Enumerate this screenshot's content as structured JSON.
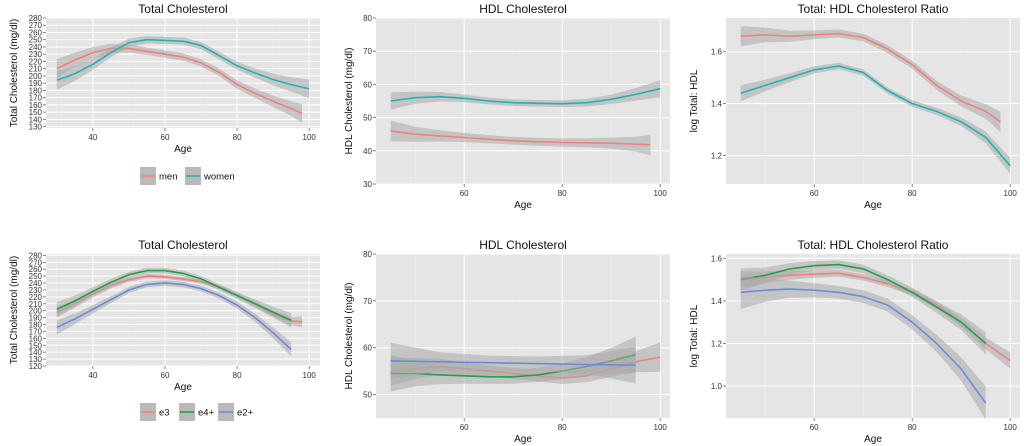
{
  "colors": {
    "panel_bg": "#e5e5e5",
    "grid": "#ffffff",
    "ribbon": "#a9a9a9",
    "men": "#f0827a",
    "women": "#1fb4b4",
    "e3": "#f0827a",
    "e4+": "#23a04a",
    "e2+": "#6b8cdc"
  },
  "rows": [
    {
      "legend": {
        "entries": [
          {
            "label": "men",
            "key": "men"
          },
          {
            "label": "women",
            "key": "women"
          }
        ]
      }
    },
    {
      "legend": {
        "entries": [
          {
            "label": "e3",
            "key": "e3"
          },
          {
            "label": "e4+",
            "key": "e4+"
          },
          {
            "label": "e2+",
            "key": "e2+"
          }
        ]
      }
    }
  ],
  "chart_data": [
    {
      "type": "line",
      "title": "Total Cholesterol",
      "xlabel": "Age",
      "ylabel": "Total Cholesterol (mg/dl)",
      "xlim": [
        27,
        103
      ],
      "ylim": [
        128,
        280
      ],
      "grid": true,
      "legend_position": "bottom",
      "xticks": [
        40,
        60,
        80,
        100
      ],
      "yticks": [
        130,
        140,
        150,
        160,
        170,
        180,
        190,
        200,
        210,
        220,
        230,
        240,
        250,
        260,
        270,
        280
      ],
      "series": [
        {
          "name": "men",
          "key": "men",
          "band": 5,
          "points": [
            [
              30,
              210
            ],
            [
              35,
              222
            ],
            [
              40,
              232
            ],
            [
              45,
              238
            ],
            [
              50,
              238
            ],
            [
              55,
              234
            ],
            [
              60,
              230
            ],
            [
              65,
              226
            ],
            [
              70,
              218
            ],
            [
              75,
              205
            ],
            [
              80,
              188
            ],
            [
              85,
              176
            ],
            [
              90,
              165
            ],
            [
              95,
              155
            ],
            [
              98,
              148
            ]
          ]
        },
        {
          "name": "women",
          "key": "women",
          "band": 5,
          "points": [
            [
              30,
              194
            ],
            [
              35,
              203
            ],
            [
              40,
              216
            ],
            [
              45,
              232
            ],
            [
              50,
              246
            ],
            [
              55,
              250
            ],
            [
              60,
              249
            ],
            [
              65,
              248
            ],
            [
              70,
              242
            ],
            [
              75,
              228
            ],
            [
              80,
              214
            ],
            [
              85,
              204
            ],
            [
              90,
              195
            ],
            [
              95,
              188
            ],
            [
              100,
              182
            ]
          ]
        }
      ]
    },
    {
      "type": "line",
      "title": "HDL Cholesterol",
      "xlabel": "Age",
      "ylabel": "HDL Cholesterol (mg/dl)",
      "xlim": [
        42,
        102
      ],
      "ylim": [
        30,
        80
      ],
      "grid": true,
      "xticks": [
        60,
        80,
        100
      ],
      "yticks": [
        30,
        40,
        50,
        60,
        70,
        80
      ],
      "series": [
        {
          "name": "men",
          "key": "men",
          "band": 1.2,
          "points": [
            [
              45,
              46
            ],
            [
              50,
              45
            ],
            [
              55,
              44.5
            ],
            [
              60,
              44
            ],
            [
              65,
              43.5
            ],
            [
              70,
              43
            ],
            [
              75,
              42.7
            ],
            [
              80,
              42.5
            ],
            [
              85,
              42.4
            ],
            [
              90,
              42.3
            ],
            [
              95,
              42
            ],
            [
              98,
              41.8
            ]
          ]
        },
        {
          "name": "women",
          "key": "women",
          "band": 1,
          "points": [
            [
              45,
              55
            ],
            [
              50,
              56
            ],
            [
              55,
              56.3
            ],
            [
              60,
              55.8
            ],
            [
              65,
              55
            ],
            [
              70,
              54.5
            ],
            [
              75,
              54.3
            ],
            [
              80,
              54.2
            ],
            [
              85,
              54.5
            ],
            [
              90,
              55.5
            ],
            [
              95,
              57
            ],
            [
              100,
              58.7
            ]
          ]
        }
      ]
    },
    {
      "type": "line",
      "title": "Total: HDL Cholesterol Ratio",
      "xlabel": "Age",
      "ylabel": "log Total: HDL",
      "xlim": [
        42,
        102
      ],
      "ylim": [
        1.09,
        1.73
      ],
      "grid": true,
      "xticks": [
        60,
        80,
        100
      ],
      "yticks": [
        1.2,
        1.4,
        1.6
      ],
      "series": [
        {
          "name": "men",
          "key": "men",
          "band": 0.015,
          "points": [
            [
              45,
              1.66
            ],
            [
              50,
              1.665
            ],
            [
              55,
              1.66
            ],
            [
              60,
              1.665
            ],
            [
              65,
              1.67
            ],
            [
              70,
              1.655
            ],
            [
              75,
              1.61
            ],
            [
              80,
              1.55
            ],
            [
              85,
              1.47
            ],
            [
              90,
              1.41
            ],
            [
              95,
              1.37
            ],
            [
              98,
              1.33
            ]
          ]
        },
        {
          "name": "women",
          "key": "women",
          "band": 0.012,
          "points": [
            [
              45,
              1.44
            ],
            [
              50,
              1.47
            ],
            [
              55,
              1.5
            ],
            [
              60,
              1.53
            ],
            [
              65,
              1.545
            ],
            [
              70,
              1.52
            ],
            [
              75,
              1.45
            ],
            [
              80,
              1.4
            ],
            [
              85,
              1.37
            ],
            [
              90,
              1.33
            ],
            [
              95,
              1.27
            ],
            [
              100,
              1.16
            ]
          ]
        }
      ]
    },
    {
      "type": "line",
      "title": "Total Cholesterol",
      "xlabel": "Age",
      "ylabel": "Total Cholesterol (mg/dl)",
      "xlim": [
        27,
        103
      ],
      "ylim": [
        120,
        282
      ],
      "grid": true,
      "legend_position": "bottom",
      "xticks": [
        40,
        60,
        80,
        100
      ],
      "yticks": [
        120,
        130,
        140,
        150,
        160,
        170,
        180,
        190,
        200,
        210,
        220,
        230,
        240,
        250,
        260,
        270,
        280
      ],
      "series": [
        {
          "name": "e3",
          "key": "e3",
          "band": 3,
          "points": [
            [
              30,
              198
            ],
            [
              35,
              210
            ],
            [
              40,
              224
            ],
            [
              45,
              236
            ],
            [
              50,
              245
            ],
            [
              55,
              250
            ],
            [
              60,
              249
            ],
            [
              65,
              246
            ],
            [
              70,
              242
            ],
            [
              75,
              234
            ],
            [
              80,
              222
            ],
            [
              85,
              210
            ],
            [
              90,
              195
            ],
            [
              95,
              185
            ],
            [
              98,
              184
            ]
          ]
        },
        {
          "name": "e4+",
          "key": "e4+",
          "band": 4,
          "points": [
            [
              30,
              202
            ],
            [
              35,
              214
            ],
            [
              40,
              228
            ],
            [
              45,
              241
            ],
            [
              50,
              252
            ],
            [
              55,
              258
            ],
            [
              60,
              258
            ],
            [
              65,
              254
            ],
            [
              70,
              246
            ],
            [
              75,
              234
            ],
            [
              80,
              222
            ],
            [
              85,
              210
            ],
            [
              90,
              198
            ],
            [
              95,
              186
            ]
          ]
        },
        {
          "name": "e2+",
          "key": "e2+",
          "band": 4,
          "points": [
            [
              30,
              176
            ],
            [
              35,
              188
            ],
            [
              40,
              202
            ],
            [
              45,
              216
            ],
            [
              50,
              230
            ],
            [
              55,
              238
            ],
            [
              60,
              240
            ],
            [
              65,
              238
            ],
            [
              70,
              232
            ],
            [
              75,
              222
            ],
            [
              80,
              208
            ],
            [
              85,
              190
            ],
            [
              90,
              168
            ],
            [
              95,
              144
            ]
          ]
        }
      ]
    },
    {
      "type": "line",
      "title": "HDL Cholesterol",
      "xlabel": "Age",
      "ylabel": "HDL Cholesterol (mg/dl)",
      "xlim": [
        42,
        102
      ],
      "ylim": [
        45,
        80
      ],
      "grid": true,
      "xticks": [
        60,
        80,
        100
      ],
      "yticks": [
        50,
        60,
        70,
        80
      ],
      "series": [
        {
          "name": "e3",
          "key": "e3",
          "band": 1.2,
          "points": [
            [
              45,
              55
            ],
            [
              50,
              55.5
            ],
            [
              55,
              56
            ],
            [
              60,
              55.5
            ],
            [
              65,
              55
            ],
            [
              70,
              54.5
            ],
            [
              75,
              54
            ],
            [
              80,
              53.5
            ],
            [
              85,
              54
            ],
            [
              90,
              55.5
            ],
            [
              95,
              57
            ],
            [
              100,
              58
            ]
          ]
        },
        {
          "name": "e4+",
          "key": "e4+",
          "band": 1.5,
          "points": [
            [
              45,
              54.5
            ],
            [
              50,
              54.5
            ],
            [
              55,
              54.2
            ],
            [
              60,
              54
            ],
            [
              65,
              53.8
            ],
            [
              70,
              53.8
            ],
            [
              75,
              54.2
            ],
            [
              80,
              55
            ],
            [
              85,
              56
            ],
            [
              90,
              57.2
            ],
            [
              95,
              58.5
            ]
          ]
        },
        {
          "name": "e2+",
          "key": "e2+",
          "band": 1.5,
          "points": [
            [
              45,
              57.2
            ],
            [
              55,
              57
            ],
            [
              65,
              56.8
            ],
            [
              75,
              56.6
            ],
            [
              85,
              56.4
            ],
            [
              95,
              56.3
            ]
          ]
        }
      ]
    },
    {
      "type": "line",
      "title": "Total: HDL Cholesterol Ratio",
      "xlabel": "Age",
      "ylabel": "log Total: HDL",
      "xlim": [
        42,
        102
      ],
      "ylim": [
        0.85,
        1.62
      ],
      "grid": true,
      "xticks": [
        60,
        80,
        100
      ],
      "yticks": [
        1.0,
        1.2,
        1.4,
        1.6
      ],
      "series": [
        {
          "name": "e3",
          "key": "e3",
          "band": 0.015,
          "points": [
            [
              45,
              1.5
            ],
            [
              50,
              1.51
            ],
            [
              55,
              1.52
            ],
            [
              60,
              1.525
            ],
            [
              65,
              1.53
            ],
            [
              70,
              1.51
            ],
            [
              75,
              1.48
            ],
            [
              80,
              1.44
            ],
            [
              85,
              1.38
            ],
            [
              90,
              1.3
            ],
            [
              95,
              1.2
            ],
            [
              100,
              1.12
            ]
          ]
        },
        {
          "name": "e4+",
          "key": "e4+",
          "band": 0.02,
          "points": [
            [
              45,
              1.5
            ],
            [
              50,
              1.52
            ],
            [
              55,
              1.55
            ],
            [
              60,
              1.565
            ],
            [
              65,
              1.57
            ],
            [
              70,
              1.55
            ],
            [
              75,
              1.5
            ],
            [
              80,
              1.44
            ],
            [
              85,
              1.37
            ],
            [
              90,
              1.3
            ],
            [
              95,
              1.2
            ]
          ]
        },
        {
          "name": "e2+",
          "key": "e2+",
          "band": 0.03,
          "points": [
            [
              45,
              1.44
            ],
            [
              50,
              1.45
            ],
            [
              55,
              1.455
            ],
            [
              60,
              1.45
            ],
            [
              65,
              1.44
            ],
            [
              70,
              1.42
            ],
            [
              75,
              1.38
            ],
            [
              80,
              1.3
            ],
            [
              85,
              1.2
            ],
            [
              90,
              1.08
            ],
            [
              95,
              0.92
            ]
          ]
        }
      ]
    }
  ]
}
